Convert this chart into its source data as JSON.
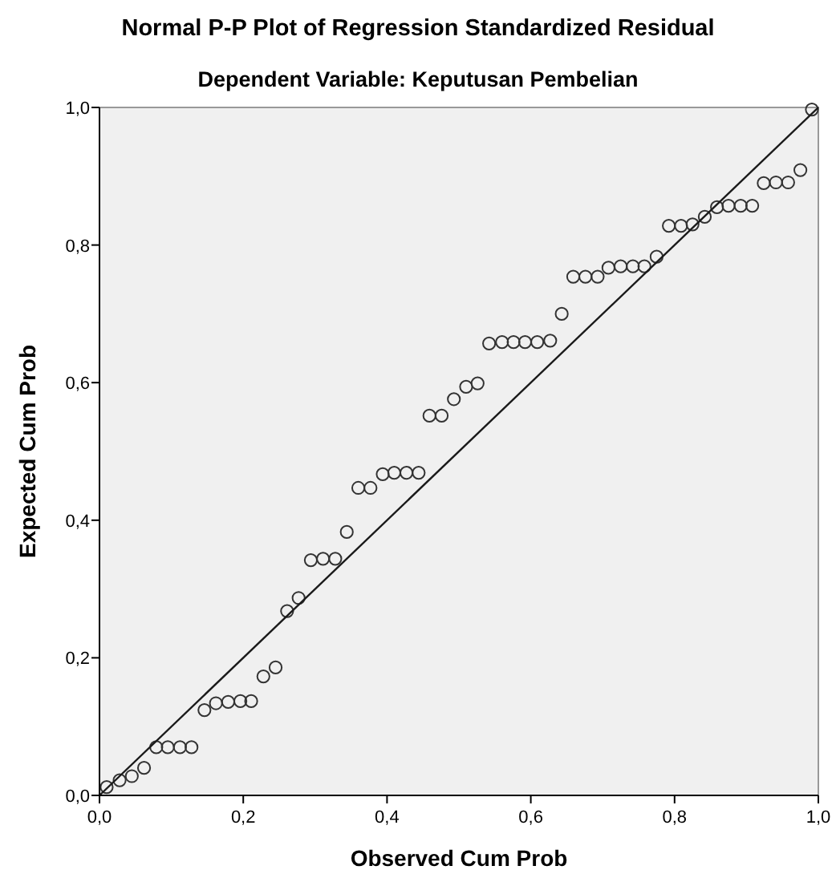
{
  "chart_data": {
    "type": "scatter",
    "title": "Normal P-P Plot of Regression Standardized Residual",
    "subtitle": "Dependent Variable: Keputusan Pembelian",
    "xlabel": "Observed Cum Prob",
    "ylabel": "Expected Cum Prob",
    "xlim": [
      0,
      1
    ],
    "ylim": [
      0,
      1
    ],
    "xticks": [
      {
        "value": 0,
        "label": "0,0"
      },
      {
        "value": 0.2,
        "label": "0,2"
      },
      {
        "value": 0.4,
        "label": "0,4"
      },
      {
        "value": 0.6,
        "label": "0,6"
      },
      {
        "value": 0.8,
        "label": "0,8"
      },
      {
        "value": 1,
        "label": "1,0"
      }
    ],
    "yticks": [
      {
        "value": 0,
        "label": "0,0"
      },
      {
        "value": 0.2,
        "label": "0,2"
      },
      {
        "value": 0.4,
        "label": "0,4"
      },
      {
        "value": 0.6,
        "label": "0,6"
      },
      {
        "value": 0.8,
        "label": "0,8"
      },
      {
        "value": 1,
        "label": "1,0"
      }
    ],
    "grid": false,
    "series": [
      {
        "color": "#333333",
        "marker": "circle",
        "x": [
          0.01,
          0.028,
          0.045,
          0.062,
          0.079,
          0.095,
          0.112,
          0.128,
          0.146,
          0.162,
          0.179,
          0.196,
          0.211,
          0.228,
          0.245,
          0.261,
          0.277,
          0.294,
          0.311,
          0.328,
          0.344,
          0.36,
          0.377,
          0.394,
          0.41,
          0.427,
          0.444,
          0.459,
          0.476,
          0.493,
          0.51,
          0.526,
          0.542,
          0.56,
          0.576,
          0.592,
          0.609,
          0.627,
          0.643,
          0.659,
          0.676,
          0.693,
          0.708,
          0.725,
          0.742,
          0.758,
          0.775,
          0.792,
          0.809,
          0.825,
          0.842,
          0.859,
          0.875,
          0.892,
          0.908,
          0.924,
          0.941,
          0.958,
          0.975,
          0.991
        ],
        "values": [
          0.012,
          0.022,
          0.028,
          0.04,
          0.07,
          0.07,
          0.07,
          0.07,
          0.124,
          0.134,
          0.136,
          0.137,
          0.137,
          0.173,
          0.186,
          0.268,
          0.287,
          0.342,
          0.344,
          0.344,
          0.383,
          0.447,
          0.447,
          0.467,
          0.469,
          0.469,
          0.469,
          0.552,
          0.552,
          0.576,
          0.594,
          0.599,
          0.657,
          0.659,
          0.659,
          0.659,
          0.659,
          0.661,
          0.7,
          0.754,
          0.754,
          0.754,
          0.767,
          0.769,
          0.769,
          0.769,
          0.783,
          0.828,
          0.828,
          0.83,
          0.841,
          0.855,
          0.857,
          0.857,
          0.857,
          0.89,
          0.891,
          0.891,
          0.909,
          0.997
        ]
      },
      {
        "type": "line",
        "color": "#1a1a1a",
        "marker": "none",
        "line_style": "solid",
        "x": [
          0,
          1
        ],
        "values": [
          0,
          1
        ]
      }
    ]
  }
}
